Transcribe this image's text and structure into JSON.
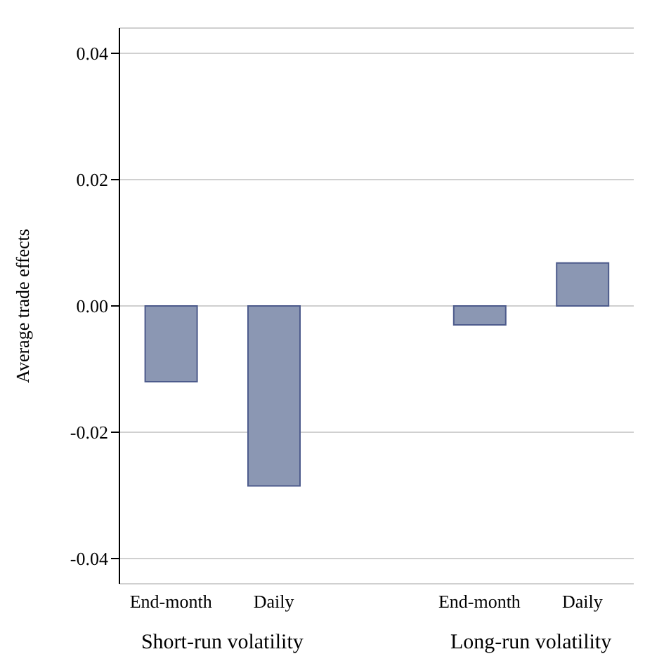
{
  "chart_data": {
    "type": "bar",
    "ylabel": "Average trade effects",
    "categories": [
      "End-month",
      "Daily",
      null,
      "End-month",
      "Daily"
    ],
    "values": [
      -0.012,
      -0.0285,
      null,
      -0.003,
      0.0068
    ],
    "color": "#8b97b3",
    "ylim": [
      -0.044,
      0.044
    ],
    "yticks": [
      {
        "value": -0.04,
        "label": "-0.04"
      },
      {
        "value": -0.02,
        "label": "-0.02"
      },
      {
        "value": 0,
        "label": "0.00"
      },
      {
        "value": 0.02,
        "label": "0.02"
      },
      {
        "value": 0.04,
        "label": "0.04"
      }
    ],
    "grid": "y",
    "annotations": [
      "Short-run volatility",
      "Long-run volatility"
    ]
  }
}
